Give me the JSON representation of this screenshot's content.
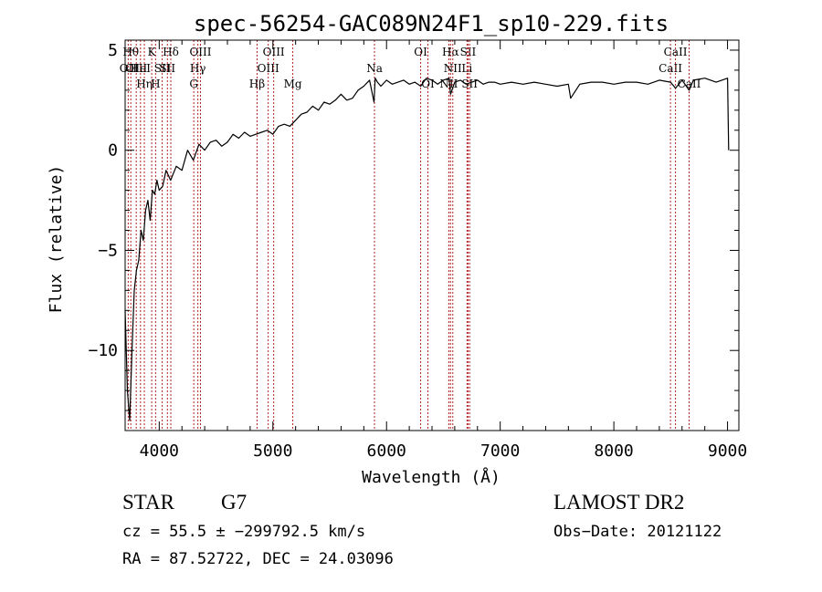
{
  "chart_data": {
    "type": "line",
    "title": "spec-56254-GAC089N24F1_sp10-229.fits",
    "xlabel": "Wavelength (Å)",
    "ylabel": "Flux (relative)",
    "xlim": [
      3700,
      9100
    ],
    "ylim": [
      -14,
      5.5
    ],
    "xticks": [
      4000,
      5000,
      6000,
      7000,
      8000,
      9000
    ],
    "yticks": [
      5,
      0,
      -5,
      -10
    ],
    "grid": false,
    "series": [
      {
        "x": [
          3700,
          3720,
          3740,
          3760,
          3780,
          3800,
          3820,
          3840,
          3860,
          3880,
          3900,
          3920,
          3940,
          3960,
          3980,
          4000,
          4030,
          4060,
          4100,
          4150,
          4200,
          4250,
          4300,
          4350,
          4400,
          4450,
          4500,
          4550,
          4600,
          4650,
          4700,
          4750,
          4800,
          4850,
          4900,
          4950,
          5000,
          5050,
          5100,
          5150,
          5200,
          5250,
          5300,
          5350,
          5400,
          5450,
          5500,
          5550,
          5600,
          5650,
          5700,
          5750,
          5800,
          5850,
          5890,
          5900,
          5920,
          5950,
          6000,
          6050,
          6100,
          6150,
          6200,
          6250,
          6300,
          6350,
          6400,
          6450,
          6500,
          6550,
          6563,
          6600,
          6650,
          6700,
          6750,
          6800,
          6850,
          6900,
          6950,
          7000,
          7100,
          7200,
          7300,
          7400,
          7500,
          7600,
          7620,
          7700,
          7800,
          7900,
          8000,
          8100,
          8200,
          8300,
          8400,
          8500,
          8542,
          8600,
          8662,
          8700,
          8800,
          8900,
          8950,
          9000,
          9010
        ],
        "y": [
          -8,
          -12,
          -13.5,
          -10,
          -7,
          -6,
          -5.5,
          -4,
          -4.5,
          -3,
          -2.5,
          -3.5,
          -2,
          -2.2,
          -1.5,
          -2,
          -1.8,
          -1,
          -1.5,
          -0.8,
          -1,
          0,
          -0.5,
          0.3,
          0,
          0.4,
          0.5,
          0.2,
          0.4,
          0.8,
          0.6,
          0.9,
          0.7,
          0.8,
          0.9,
          1,
          0.8,
          1.2,
          1.3,
          1.2,
          1.5,
          1.8,
          1.9,
          2.2,
          2,
          2.4,
          2.3,
          2.5,
          2.8,
          2.5,
          2.6,
          3,
          3.2,
          3.5,
          2.4,
          3.6,
          3.4,
          3.2,
          3.5,
          3.3,
          3.4,
          3.5,
          3.3,
          3.4,
          3.2,
          3.6,
          3.5,
          3.3,
          3.5,
          3.6,
          2.8,
          3.4,
          3.5,
          3.3,
          3.4,
          3.5,
          3.3,
          3.4,
          3.4,
          3.3,
          3.4,
          3.3,
          3.4,
          3.3,
          3.2,
          3.3,
          2.6,
          3.3,
          3.4,
          3.4,
          3.3,
          3.4,
          3.4,
          3.3,
          3.5,
          3.4,
          3.1,
          3.5,
          3,
          3.5,
          3.6,
          3.4,
          3.5,
          3.6,
          0
        ]
      }
    ],
    "line_color": "#000000",
    "marker_color": "#b22222",
    "markers": [
      {
        "x": 3727,
        "label": "OII",
        "row": 2
      },
      {
        "x": 3750,
        "label": "Hθ",
        "row": 1
      },
      {
        "x": 3798,
        "label": "OIII",
        "row": 2
      },
      {
        "x": 3835,
        "label": "HeI",
        "row": 2
      },
      {
        "x": 3869,
        "label": "Hη",
        "row": 3
      },
      {
        "x": 3934,
        "label": "K",
        "row": 1
      },
      {
        "x": 3968,
        "label": "H",
        "row": 3
      },
      {
        "x": 4026,
        "label": "SII",
        "row": 2
      },
      {
        "x": 4072,
        "label": "SII",
        "row": 2
      },
      {
        "x": 4102,
        "label": "Hδ",
        "row": 1
      },
      {
        "x": 4304,
        "label": "G",
        "row": 3
      },
      {
        "x": 4340,
        "label": "Hγ",
        "row": 2
      },
      {
        "x": 4363,
        "label": "OIII",
        "row": 1
      },
      {
        "x": 4861,
        "label": "Hβ",
        "row": 3
      },
      {
        "x": 4959,
        "label": "OIII",
        "row": 2
      },
      {
        "x": 5007,
        "label": "OIII",
        "row": 1
      },
      {
        "x": 5175,
        "label": "Mg",
        "row": 3
      },
      {
        "x": 5894,
        "label": "Na",
        "row": 2
      },
      {
        "x": 6300,
        "label": "OI",
        "row": 1
      },
      {
        "x": 6364,
        "label": "OI",
        "row": 3
      },
      {
        "x": 6548,
        "label": "NII",
        "row": 3
      },
      {
        "x": 6563,
        "label": "Hα",
        "row": 1
      },
      {
        "x": 6583,
        "label": "NII",
        "row": 2
      },
      {
        "x": 6708,
        "label": "Li",
        "row": 2
      },
      {
        "x": 6717,
        "label": "SII",
        "row": 1
      },
      {
        "x": 6731,
        "label": "SII",
        "row": 3
      },
      {
        "x": 8498,
        "label": "CaII",
        "row": 2
      },
      {
        "x": 8542,
        "label": "CaII",
        "row": 1
      },
      {
        "x": 8662,
        "label": "CaII",
        "row": 3
      }
    ]
  },
  "info": {
    "class": "STAR",
    "subclass": "G7",
    "survey": "LAMOST DR2",
    "cz": "cz = 55.5 ± −299792.5 km/s",
    "obs_date": "Obs−Date: 20121122",
    "radec": "RA =  87.52722, DEC =  24.03096"
  }
}
